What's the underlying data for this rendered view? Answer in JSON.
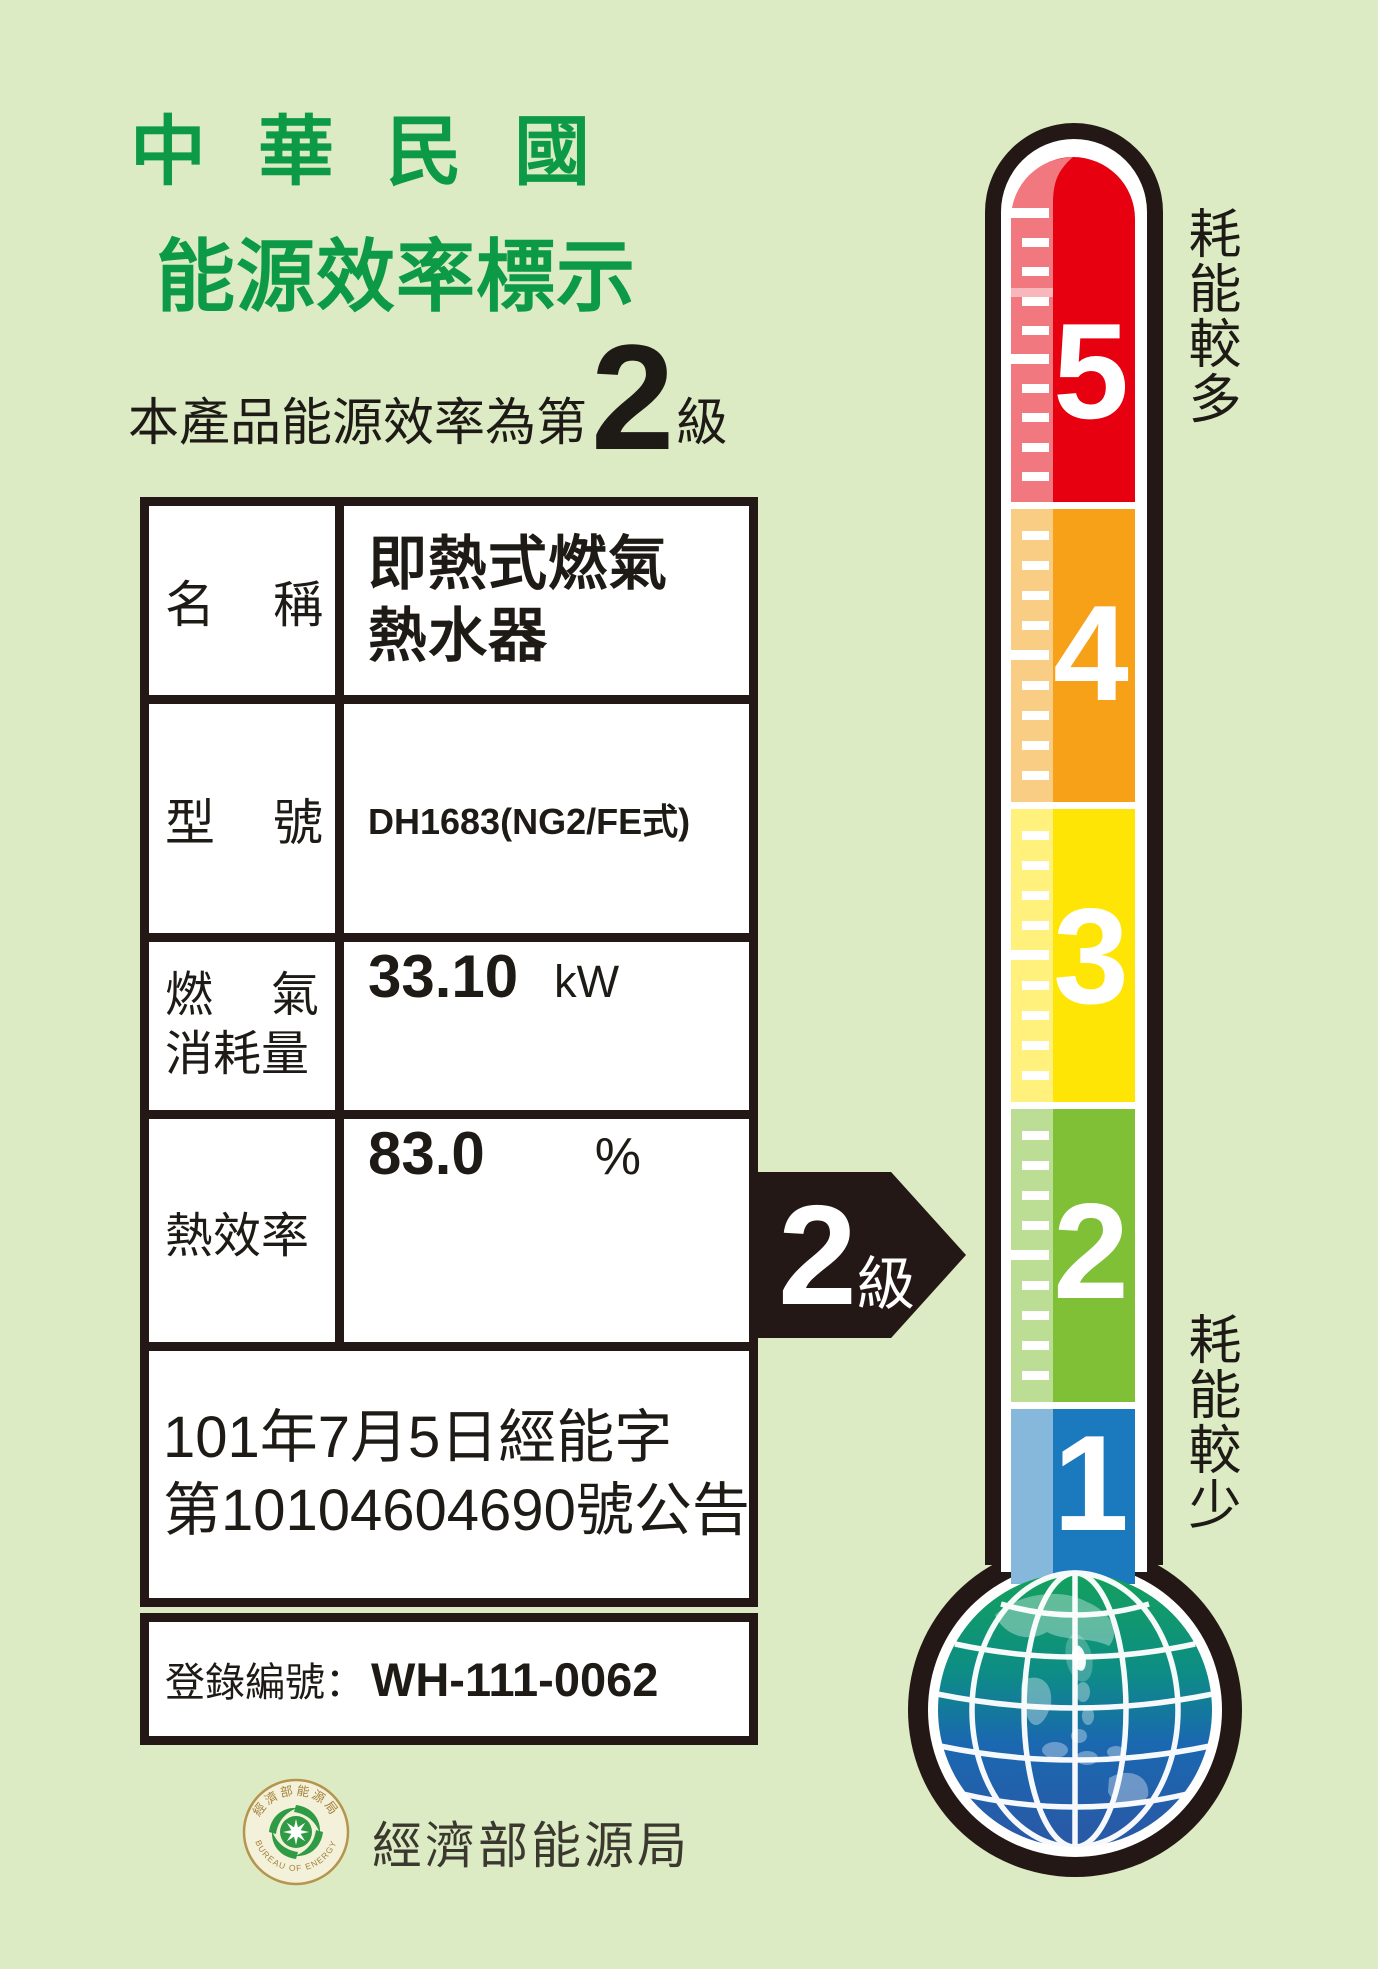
{
  "colors": {
    "bg": "#dcebc4",
    "green": "#0d9a47",
    "ink": "#231815",
    "paper": "#ffffff"
  },
  "header": {
    "title_line1": "中華民國",
    "title_line2": "能源效率標示",
    "subtitle_prefix": "本產品能源效率為第",
    "subtitle_grade": "2",
    "subtitle_suffix": "級"
  },
  "table": {
    "rows": [
      {
        "label": "名稱",
        "value_line1": "即熱式燃氣",
        "value_line2": "熱水器"
      },
      {
        "label": "型號",
        "value": "DH1683(NG2/FE式)"
      },
      {
        "label_line1": "燃氣",
        "label_line2": "消耗量",
        "value": "33.10",
        "unit": "kW"
      },
      {
        "label": "熱效率",
        "value": "83.0",
        "unit": "%"
      }
    ],
    "announcement_line1": "101年7月5日經能字",
    "announcement_line2": "第10104604690號公告",
    "registration_label": "登錄編號：",
    "registration_value": "WH-111-0062"
  },
  "grade_arrow": {
    "grade": "2",
    "suffix": "級"
  },
  "thermometer": {
    "segments": [
      {
        "grade": "5",
        "color": "#e7000f"
      },
      {
        "grade": "4",
        "color": "#f6a118"
      },
      {
        "grade": "3",
        "color": "#ffe506"
      },
      {
        "grade": "2",
        "color": "#7fc036"
      },
      {
        "grade": "1",
        "color": "#1b79bd"
      }
    ],
    "label_top": "耗能較多",
    "label_bottom": "耗能較少"
  },
  "footer": {
    "agency": "經濟部能源局",
    "seal_text_top": "經濟部能源局",
    "seal_text_bottom": "BUREAU OF ENERGY"
  }
}
